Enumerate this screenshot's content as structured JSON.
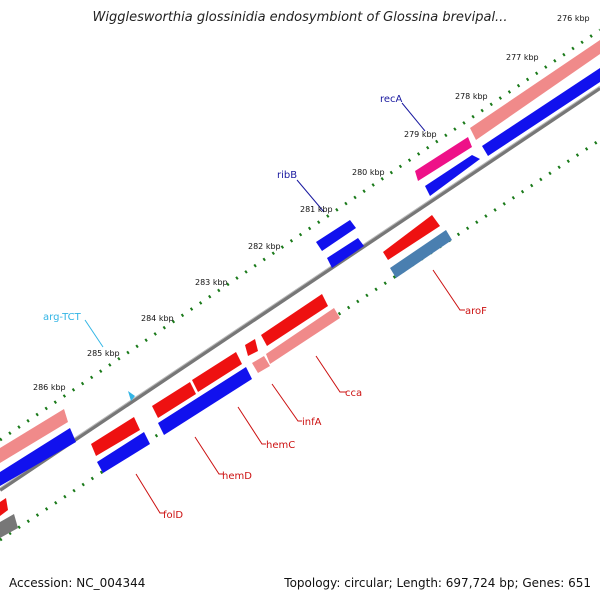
{
  "header": {
    "title": "Wigglesworthia glossinidia endosymbiont of Glossina brevipal..."
  },
  "footer": {
    "accession": "Accession: NC_004344",
    "topology": "Topology: circular; Length: 697,724 bp; Genes: 651"
  },
  "ticks": [
    "276 kbp",
    "277 kbp",
    "278 kbp",
    "279 kbp",
    "280 kbp",
    "281 kbp",
    "282 kbp",
    "283 kbp",
    "284 kbp",
    "285 kbp",
    "286 kbp"
  ],
  "genes": [
    {
      "name": "recA",
      "color": "#1a1aa0"
    },
    {
      "name": "ribB",
      "color": "#1a1aa0"
    },
    {
      "name": "arg-TCT",
      "color": "#33b5e5"
    },
    {
      "name": "aroF",
      "color": "#cc1111"
    },
    {
      "name": "cca",
      "color": "#cc1111"
    },
    {
      "name": "infA",
      "color": "#cc1111"
    },
    {
      "name": "hemC",
      "color": "#cc1111"
    },
    {
      "name": "hemD",
      "color": "#cc1111"
    },
    {
      "name": "folD",
      "color": "#cc1111"
    }
  ],
  "colors": {
    "forward_cds": "#1111ee",
    "reverse_cds": "#ee1111",
    "pseudo_reverse": "#f08a8a",
    "steelblue": "#4a7fb0",
    "magenta": "#ee1188",
    "backbone": "#888888",
    "tick_dots": "#1a7a1a",
    "trna": "#33b5e5"
  }
}
